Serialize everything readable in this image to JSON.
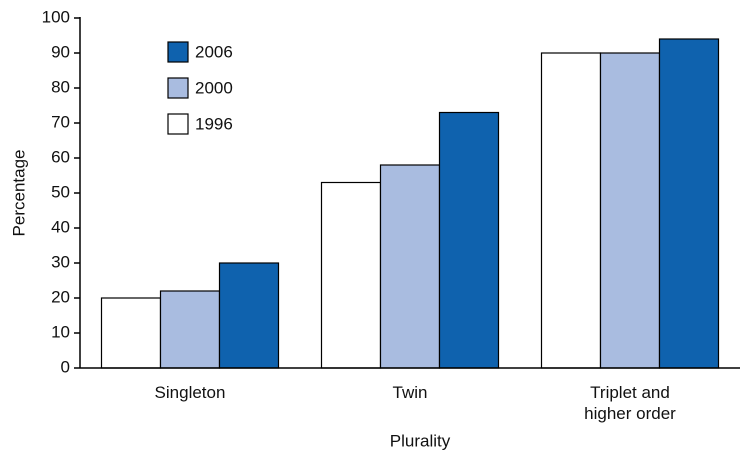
{
  "chart_data": {
    "type": "bar",
    "x_label": "Plurality",
    "y_label": "Percentage",
    "categories": [
      "Singleton",
      "Twin",
      "Triplet and higher order"
    ],
    "series": [
      {
        "name": "1996",
        "color": "#ffffff",
        "values": [
          20,
          53,
          90
        ]
      },
      {
        "name": "2000",
        "color": "#a9bce0",
        "values": [
          22,
          58,
          90
        ]
      },
      {
        "name": "2006",
        "color": "#0f62ae",
        "values": [
          30,
          73,
          94
        ]
      }
    ],
    "ylim": [
      0,
      100
    ],
    "yticks": [
      0,
      10,
      20,
      30,
      40,
      50,
      60,
      70,
      80,
      90,
      100
    ],
    "grid": false
  }
}
